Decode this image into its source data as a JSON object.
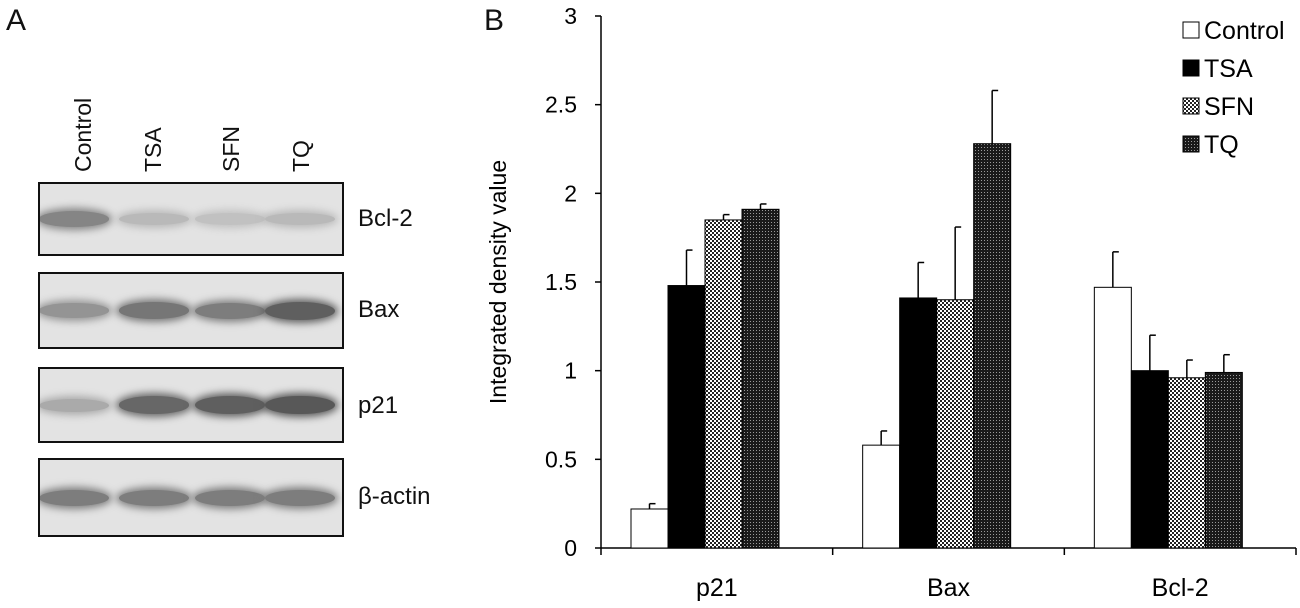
{
  "panels": {
    "a_label": "A",
    "b_label": "B"
  },
  "blot": {
    "lanes": [
      "Control",
      "TSA",
      "SFN",
      "TQ"
    ],
    "rows": [
      {
        "protein": "Bcl-2",
        "intensity": [
          0.55,
          0.2,
          0.15,
          0.2
        ]
      },
      {
        "protein": "Bax",
        "intensity": [
          0.45,
          0.65,
          0.6,
          0.8
        ]
      },
      {
        "protein": "p21",
        "intensity": [
          0.3,
          0.75,
          0.8,
          0.85
        ]
      },
      {
        "protein": "β-actin",
        "intensity": [
          0.6,
          0.6,
          0.6,
          0.6
        ]
      }
    ]
  },
  "chart_data": {
    "type": "bar",
    "title": "",
    "xlabel": "",
    "ylabel": "Integrated density value",
    "ylim": [
      0,
      3
    ],
    "yticks": [
      0,
      0.5,
      1,
      1.5,
      2,
      2.5,
      3
    ],
    "ytick_labels": [
      "0",
      "0.5",
      "1",
      "1.5",
      "2",
      "2.5",
      "3"
    ],
    "categories": [
      "p21",
      "Bax",
      "Bcl-2"
    ],
    "series": [
      {
        "name": "Control",
        "pattern": "white",
        "values": [
          0.22,
          0.58,
          1.47
        ],
        "errors": [
          0.03,
          0.08,
          0.2
        ]
      },
      {
        "name": "TSA",
        "pattern": "black",
        "values": [
          1.48,
          1.41,
          1.0
        ],
        "errors": [
          0.2,
          0.2,
          0.2
        ]
      },
      {
        "name": "SFN",
        "pattern": "checker",
        "values": [
          1.85,
          1.4,
          0.96
        ],
        "errors": [
          0.03,
          0.41,
          0.1
        ]
      },
      {
        "name": "TQ",
        "pattern": "dark-dots",
        "values": [
          1.91,
          2.28,
          0.99
        ],
        "errors": [
          0.03,
          0.3,
          0.1
        ]
      }
    ],
    "legend": "top-right",
    "grid": false
  }
}
